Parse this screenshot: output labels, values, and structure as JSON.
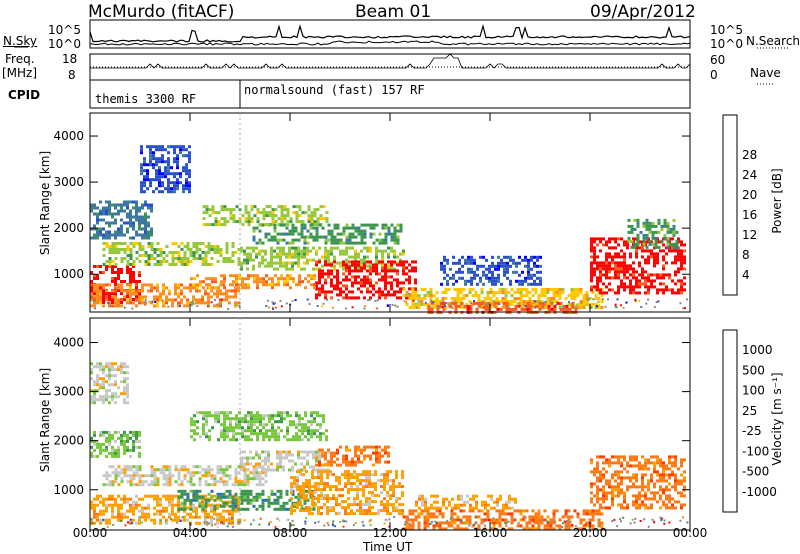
{
  "header": {
    "station": "McMurdo (fitACF)",
    "beam": "Beam 01",
    "date": "09/Apr/2012"
  },
  "status_panel": {
    "left_labels": [
      "N.Sky",
      "Freq.",
      "[MHz]",
      "CPID"
    ],
    "right_labels": [
      "N.Search",
      "Nave"
    ],
    "nsky_ticks": [
      "10^5",
      "10^0"
    ],
    "nsearch_ticks": [
      "10^5",
      "10^0"
    ],
    "freq_ticks": [
      "18",
      "8"
    ],
    "nave_ticks": [
      "60",
      "0"
    ],
    "cpid_segments": [
      {
        "label": "themis 3300 RF",
        "start_hour": 0.0,
        "end_hour": 6.0
      },
      {
        "label": "normalsound (fast) 157 RF",
        "start_hour": 6.0,
        "end_hour": 24.0
      }
    ]
  },
  "colors": {
    "power_scale": [
      "#0000ff",
      "#2850c8",
      "#3c78a0",
      "#3c9650",
      "#96c83c",
      "#ffc800",
      "#ff8c1e",
      "#ff5a1e",
      "#ff0000"
    ],
    "velocity_scale": [
      "#2846c8",
      "#2f6fb4",
      "#3c9650",
      "#78c83c",
      "#c8c8c8",
      "#ffa000",
      "#ff7814",
      "#ff3c00",
      "#ff0000"
    ]
  },
  "chart_data": [
    {
      "type": "heatmap",
      "name": "power",
      "xlabel": "Time UT",
      "ylabel": "Slant Range [km]",
      "x_ticks": [
        "00:00",
        "04:00",
        "08:00",
        "12:00",
        "16:00",
        "20:00",
        "00:00"
      ],
      "xlim_hours": [
        0,
        24
      ],
      "y_ticks": [
        1000,
        2000,
        3000,
        4000
      ],
      "ylim_km": [
        180,
        4500
      ],
      "colorbar_label": "Power [dB]",
      "colorbar_ticks": [
        "4",
        "8",
        "12",
        "16",
        "20",
        "24",
        "28"
      ],
      "colorbar_range": [
        0,
        30
      ],
      "echo_regions": [
        {
          "t0": 0.0,
          "t1": 2.0,
          "r0": 400,
          "r1": 1200,
          "value": 28
        },
        {
          "t0": 0.0,
          "t1": 6.0,
          "r0": 300,
          "r1": 800,
          "value": 22
        },
        {
          "t0": 0.5,
          "t1": 6.0,
          "r0": 1200,
          "r1": 1700,
          "value": 14
        },
        {
          "t0": 0.0,
          "t1": 2.5,
          "r0": 1800,
          "r1": 2600,
          "value": 8
        },
        {
          "t0": 2.0,
          "t1": 4.0,
          "r0": 2800,
          "r1": 3800,
          "value": 4
        },
        {
          "t0": 4.5,
          "t1": 9.5,
          "r0": 2100,
          "r1": 2500,
          "value": 16
        },
        {
          "t0": 6.0,
          "t1": 12.5,
          "r0": 1100,
          "r1": 1600,
          "value": 14
        },
        {
          "t0": 9.0,
          "t1": 13.0,
          "r0": 500,
          "r1": 1300,
          "value": 29
        },
        {
          "t0": 4.0,
          "t1": 9.0,
          "r0": 700,
          "r1": 1000,
          "value": 20
        },
        {
          "t0": 6.5,
          "t1": 12.5,
          "r0": 1700,
          "r1": 2100,
          "value": 12
        },
        {
          "t0": 12.5,
          "t1": 20.5,
          "r0": 300,
          "r1": 700,
          "value": 18
        },
        {
          "t0": 13.5,
          "t1": 19.5,
          "r0": 200,
          "r1": 400,
          "value": 26
        },
        {
          "t0": 14.0,
          "t1": 18.0,
          "r0": 800,
          "r1": 1400,
          "value": 6
        },
        {
          "t0": 20.0,
          "t1": 23.8,
          "r0": 600,
          "r1": 1800,
          "value": 27
        },
        {
          "t0": 21.5,
          "t1": 23.5,
          "r0": 1600,
          "r1": 2200,
          "value": 10
        }
      ]
    },
    {
      "type": "heatmap",
      "name": "velocity",
      "xlabel": "Time UT",
      "ylabel": "Slant Range [km]",
      "x_ticks": [
        "00:00",
        "04:00",
        "08:00",
        "12:00",
        "16:00",
        "20:00",
        "00:00"
      ],
      "xlim_hours": [
        0,
        24
      ],
      "y_ticks": [
        1000,
        2000,
        3000,
        4000
      ],
      "ylim_km": [
        180,
        4500
      ],
      "colorbar_label": "Velocity [m s⁻¹]",
      "colorbar_ticks": [
        "1000",
        "500",
        "100",
        "25",
        "-25",
        "-100",
        "-500",
        "-1000"
      ],
      "echo_regions": [
        {
          "t0": 0.0,
          "t1": 6.0,
          "r0": 300,
          "r1": 900,
          "class": 5
        },
        {
          "t0": 0.5,
          "t1": 7.0,
          "r0": 1100,
          "r1": 1500,
          "class": 4
        },
        {
          "t0": 3.5,
          "t1": 9.0,
          "r0": 600,
          "r1": 1000,
          "class": 2
        },
        {
          "t0": 4.0,
          "t1": 9.5,
          "r0": 2000,
          "r1": 2600,
          "class": 3
        },
        {
          "t0": 6.0,
          "t1": 9.5,
          "r0": 1400,
          "r1": 1800,
          "class": 4
        },
        {
          "t0": 8.0,
          "t1": 12.5,
          "r0": 500,
          "r1": 1400,
          "class": 5
        },
        {
          "t0": 9.0,
          "t1": 12.0,
          "r0": 1500,
          "r1": 1900,
          "class": 6
        },
        {
          "t0": 12.5,
          "t1": 20.5,
          "r0": 200,
          "r1": 600,
          "class": 6
        },
        {
          "t0": 13.0,
          "t1": 17.0,
          "r0": 600,
          "r1": 900,
          "class": 5
        },
        {
          "t0": 20.0,
          "t1": 23.8,
          "r0": 600,
          "r1": 1700,
          "class": 6
        },
        {
          "t0": 0.0,
          "t1": 2.0,
          "r0": 1700,
          "r1": 2200,
          "class": 3
        },
        {
          "t0": 0.0,
          "t1": 1.5,
          "r0": 2800,
          "r1": 3600,
          "class": 4
        }
      ]
    }
  ]
}
